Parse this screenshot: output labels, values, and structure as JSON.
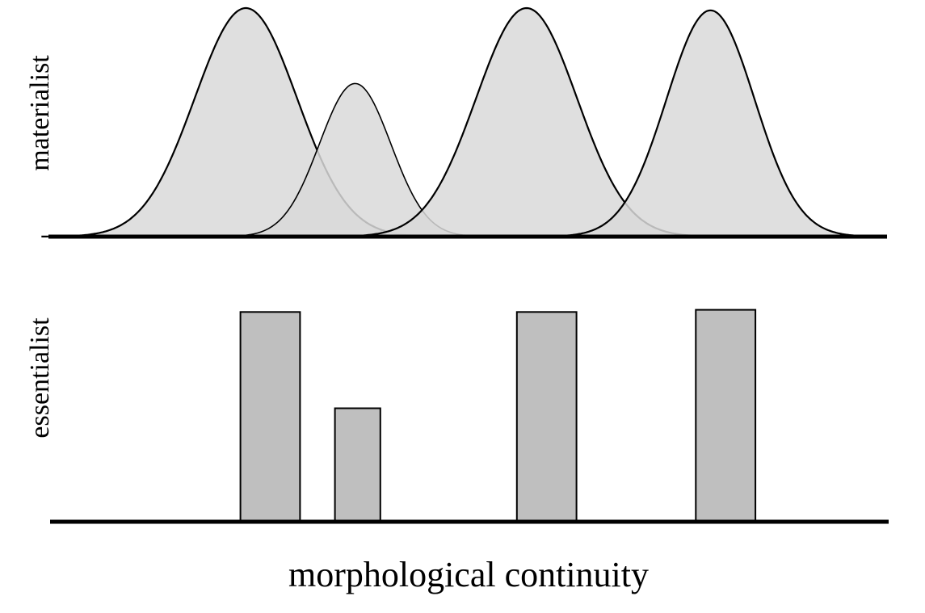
{
  "chart_data": [
    {
      "type": "area",
      "panel_label": "materialist",
      "series": [
        {
          "center": 0.235,
          "relative_height": 1.0,
          "width": 0.073
        },
        {
          "center": 0.365,
          "relative_height": 0.67,
          "width": 0.051
        },
        {
          "center": 0.569,
          "relative_height": 1.0,
          "width": 0.072
        },
        {
          "center": 0.788,
          "relative_height": 0.99,
          "width": 0.063
        }
      ],
      "fill_color": "#d9d9d9",
      "stroke_color": "#000000"
    },
    {
      "type": "bar",
      "panel_label": "essentialist",
      "values": [
        {
          "center": 0.264,
          "width": 0.071,
          "relative_height": 0.98
        },
        {
          "center": 0.368,
          "width": 0.054,
          "relative_height": 0.53
        },
        {
          "center": 0.593,
          "width": 0.071,
          "relative_height": 0.98
        },
        {
          "center": 0.806,
          "width": 0.071,
          "relative_height": 0.99
        }
      ],
      "fill_color": "#bfbfbf",
      "stroke_color": "#000000"
    }
  ],
  "xlabel": "morphological continuity"
}
